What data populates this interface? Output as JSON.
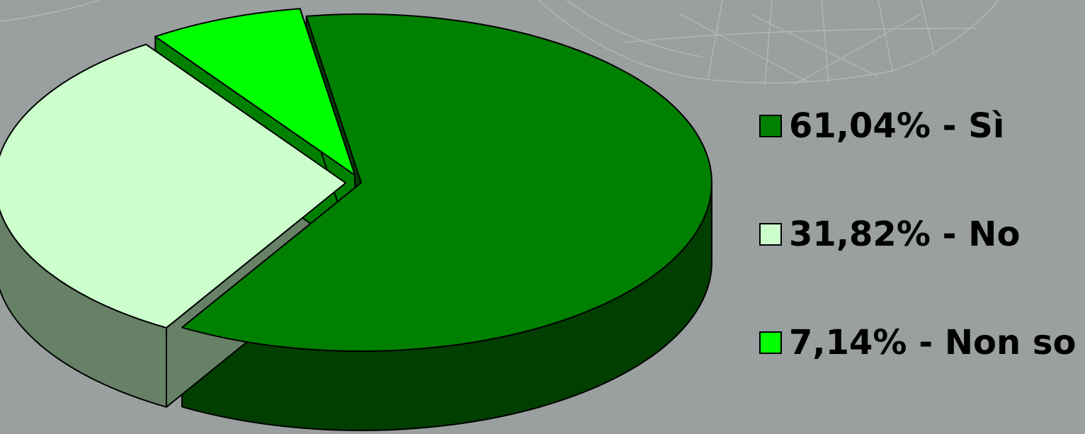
{
  "chart_data": {
    "type": "pie",
    "style": "3d-exploded",
    "title": "",
    "legend_position": "right",
    "slices": [
      {
        "label": "61,04% - Sì",
        "value": 61.04,
        "color": "#008000",
        "side_color": "#003f00"
      },
      {
        "label": "31,82% - No",
        "value": 31.82,
        "color": "#ccffcc",
        "side_color": "#668166"
      },
      {
        "label": "7,14% - Non so",
        "value": 7.14,
        "color": "#00ff00",
        "side_color": "#008000"
      }
    ]
  },
  "background_color": "#9a9fa0"
}
